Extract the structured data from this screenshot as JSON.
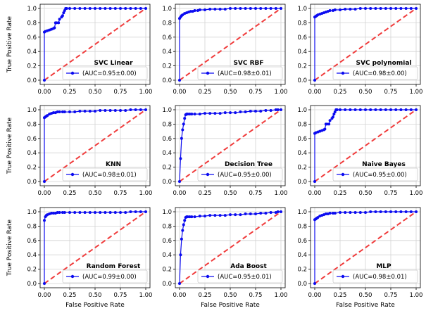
{
  "figure": {
    "xlabel": "False Positive Rate",
    "ylabel": "True Positive Rate"
  },
  "colors": {
    "roc": "#0b0bf0",
    "chance": "#f03c3c",
    "grid": "#d3d3d3",
    "axes": "#000000"
  },
  "chart_data": [
    {
      "type": "line",
      "title": "SVC Linear",
      "xlabel": "",
      "ylabel": "True Positive Rate",
      "xlim": [
        0,
        1
      ],
      "ylim": [
        0,
        1
      ],
      "grid": true,
      "legend_position": "lower-right",
      "xticks": [
        "0.00",
        "0.25",
        "0.50",
        "0.75",
        "1.00"
      ],
      "yticks": [
        "0.0",
        "0.2",
        "0.4",
        "0.6",
        "0.8",
        "1.0"
      ],
      "series": [
        {
          "name": "(AUC=0.95±0.00)",
          "x": [
            0.0,
            0.0,
            0.01,
            0.03,
            0.05,
            0.07,
            0.09,
            0.1,
            0.11,
            0.12,
            0.14,
            0.15,
            0.17,
            0.18,
            0.19,
            0.2,
            0.21,
            0.22,
            0.25,
            0.3,
            0.35,
            0.4,
            0.45,
            0.5,
            0.55,
            0.6,
            0.65,
            0.7,
            0.75,
            0.8,
            0.85,
            0.9,
            0.95,
            1.0
          ],
          "y": [
            0.0,
            0.67,
            0.68,
            0.69,
            0.7,
            0.71,
            0.72,
            0.73,
            0.8,
            0.8,
            0.8,
            0.85,
            0.88,
            0.9,
            0.94,
            0.97,
            1.0,
            1.0,
            1.0,
            1.0,
            1.0,
            1.0,
            1.0,
            1.0,
            1.0,
            1.0,
            1.0,
            1.0,
            1.0,
            1.0,
            1.0,
            1.0,
            1.0,
            1.0
          ]
        },
        {
          "name": "chance",
          "x": [
            0,
            1
          ],
          "y": [
            0,
            1
          ]
        }
      ]
    },
    {
      "type": "line",
      "title": "SVC RBF",
      "xlabel": "",
      "ylabel": "",
      "xlim": [
        0,
        1
      ],
      "ylim": [
        0,
        1
      ],
      "grid": true,
      "legend_position": "lower-right",
      "xticks": [
        "0.00",
        "0.25",
        "0.50",
        "0.75",
        "1.00"
      ],
      "yticks": [
        "0.0",
        "0.2",
        "0.4",
        "0.6",
        "0.8",
        "1.0"
      ],
      "series": [
        {
          "name": "(AUC=0.98±0.01)",
          "x": [
            0.0,
            0.0,
            0.01,
            0.02,
            0.03,
            0.05,
            0.07,
            0.09,
            0.11,
            0.13,
            0.15,
            0.18,
            0.2,
            0.25,
            0.3,
            0.35,
            0.4,
            0.45,
            0.5,
            0.55,
            0.6,
            0.65,
            0.7,
            0.75,
            0.8,
            0.85,
            0.9,
            0.95,
            1.0
          ],
          "y": [
            0.0,
            0.86,
            0.88,
            0.9,
            0.91,
            0.93,
            0.94,
            0.95,
            0.96,
            0.96,
            0.97,
            0.97,
            0.98,
            0.98,
            0.99,
            0.99,
            0.99,
            0.99,
            1.0,
            1.0,
            1.0,
            1.0,
            1.0,
            1.0,
            1.0,
            1.0,
            1.0,
            1.0,
            1.0
          ]
        },
        {
          "name": "chance",
          "x": [
            0,
            1
          ],
          "y": [
            0,
            1
          ]
        }
      ]
    },
    {
      "type": "line",
      "title": "SVC polynomial",
      "xlabel": "",
      "ylabel": "",
      "xlim": [
        0,
        1
      ],
      "ylim": [
        0,
        1
      ],
      "grid": true,
      "legend_position": "lower-right",
      "xticks": [
        "0.00",
        "0.25",
        "0.50",
        "0.75",
        "1.00"
      ],
      "yticks": [
        "0.0",
        "0.2",
        "0.4",
        "0.6",
        "0.8",
        "1.0"
      ],
      "series": [
        {
          "name": "(AUC=0.98±0.00)",
          "x": [
            0.0,
            0.0,
            0.01,
            0.02,
            0.03,
            0.05,
            0.07,
            0.09,
            0.11,
            0.13,
            0.15,
            0.18,
            0.2,
            0.25,
            0.3,
            0.35,
            0.4,
            0.45,
            0.5,
            0.55,
            0.6,
            0.65,
            0.7,
            0.75,
            0.8,
            0.85,
            0.9,
            0.95,
            1.0
          ],
          "y": [
            0.0,
            0.88,
            0.89,
            0.9,
            0.91,
            0.92,
            0.93,
            0.94,
            0.95,
            0.96,
            0.97,
            0.97,
            0.98,
            0.98,
            0.99,
            0.99,
            0.99,
            1.0,
            1.0,
            1.0,
            1.0,
            1.0,
            1.0,
            1.0,
            1.0,
            1.0,
            1.0,
            1.0,
            1.0
          ]
        },
        {
          "name": "chance",
          "x": [
            0,
            1
          ],
          "y": [
            0,
            1
          ]
        }
      ]
    },
    {
      "type": "line",
      "title": "KNN",
      "xlabel": "",
      "ylabel": "True Positive Rate",
      "xlim": [
        0,
        1
      ],
      "ylim": [
        0,
        1
      ],
      "grid": true,
      "legend_position": "lower-right",
      "xticks": [
        "0.00",
        "0.25",
        "0.50",
        "0.75",
        "1.00"
      ],
      "yticks": [
        "0.0",
        "0.2",
        "0.4",
        "0.6",
        "0.8",
        "1.0"
      ],
      "series": [
        {
          "name": "(AUC=0.98±0.01)",
          "x": [
            0.0,
            0.0,
            0.01,
            0.02,
            0.03,
            0.05,
            0.07,
            0.09,
            0.11,
            0.13,
            0.15,
            0.18,
            0.2,
            0.25,
            0.3,
            0.35,
            0.4,
            0.45,
            0.5,
            0.55,
            0.6,
            0.65,
            0.7,
            0.75,
            0.8,
            0.85,
            0.9,
            0.95,
            1.0
          ],
          "y": [
            0.0,
            0.89,
            0.9,
            0.91,
            0.92,
            0.94,
            0.95,
            0.96,
            0.96,
            0.97,
            0.97,
            0.97,
            0.97,
            0.97,
            0.97,
            0.98,
            0.98,
            0.98,
            0.98,
            0.99,
            0.99,
            0.99,
            0.99,
            0.99,
            0.99,
            1.0,
            1.0,
            1.0,
            1.0
          ]
        },
        {
          "name": "chance",
          "x": [
            0,
            1
          ],
          "y": [
            0,
            1
          ]
        }
      ]
    },
    {
      "type": "line",
      "title": "Decision Tree",
      "xlabel": "",
      "ylabel": "",
      "xlim": [
        0,
        1
      ],
      "ylim": [
        0,
        1
      ],
      "grid": true,
      "legend_position": "lower-right",
      "xticks": [
        "0.00",
        "0.25",
        "0.50",
        "0.75",
        "1.00"
      ],
      "yticks": [
        "0.0",
        "0.2",
        "0.4",
        "0.6",
        "0.8",
        "1.0"
      ],
      "series": [
        {
          "name": "(AUC=0.95±0.00)",
          "x": [
            0.0,
            0.01,
            0.02,
            0.03,
            0.04,
            0.05,
            0.06,
            0.07,
            0.08,
            0.1,
            0.12,
            0.15,
            0.2,
            0.25,
            0.3,
            0.35,
            0.4,
            0.45,
            0.5,
            0.55,
            0.6,
            0.65,
            0.7,
            0.75,
            0.8,
            0.85,
            0.9,
            0.95,
            0.97,
            1.0
          ],
          "y": [
            0.0,
            0.32,
            0.6,
            0.72,
            0.8,
            0.88,
            0.93,
            0.94,
            0.94,
            0.94,
            0.94,
            0.94,
            0.94,
            0.95,
            0.95,
            0.95,
            0.95,
            0.96,
            0.96,
            0.96,
            0.97,
            0.97,
            0.98,
            0.98,
            0.98,
            0.99,
            0.99,
            1.0,
            1.0,
            1.0
          ]
        },
        {
          "name": "chance",
          "x": [
            0,
            1
          ],
          "y": [
            0,
            1
          ]
        }
      ]
    },
    {
      "type": "line",
      "title": "Naive Bayes",
      "xlabel": "",
      "ylabel": "",
      "xlim": [
        0,
        1
      ],
      "ylim": [
        0,
        1
      ],
      "grid": true,
      "legend_position": "lower-right",
      "xticks": [
        "0.00",
        "0.25",
        "0.50",
        "0.75",
        "1.00"
      ],
      "yticks": [
        "0.0",
        "0.2",
        "0.4",
        "0.6",
        "0.8",
        "1.0"
      ],
      "series": [
        {
          "name": "(AUC=0.95±0.00)",
          "x": [
            0.0,
            0.0,
            0.01,
            0.03,
            0.05,
            0.07,
            0.09,
            0.1,
            0.11,
            0.12,
            0.14,
            0.15,
            0.17,
            0.18,
            0.19,
            0.2,
            0.21,
            0.22,
            0.25,
            0.3,
            0.35,
            0.4,
            0.45,
            0.5,
            0.55,
            0.6,
            0.65,
            0.7,
            0.75,
            0.8,
            0.85,
            0.9,
            0.95,
            1.0
          ],
          "y": [
            0.0,
            0.67,
            0.68,
            0.69,
            0.7,
            0.71,
            0.72,
            0.73,
            0.8,
            0.8,
            0.8,
            0.85,
            0.88,
            0.9,
            0.94,
            0.97,
            1.0,
            1.0,
            1.0,
            1.0,
            1.0,
            1.0,
            1.0,
            1.0,
            1.0,
            1.0,
            1.0,
            1.0,
            1.0,
            1.0,
            1.0,
            1.0,
            1.0,
            1.0
          ]
        },
        {
          "name": "chance",
          "x": [
            0,
            1
          ],
          "y": [
            0,
            1
          ]
        }
      ]
    },
    {
      "type": "line",
      "title": "Random Forest",
      "xlabel": "False Positive Rate",
      "ylabel": "True Positive Rate",
      "xlim": [
        0,
        1
      ],
      "ylim": [
        0,
        1
      ],
      "grid": true,
      "legend_position": "lower-right",
      "xticks": [
        "0.00",
        "0.25",
        "0.50",
        "0.75",
        "1.00"
      ],
      "yticks": [
        "0.0",
        "0.2",
        "0.4",
        "0.6",
        "0.8",
        "1.0"
      ],
      "series": [
        {
          "name": "(AUC=0.99±0.00)",
          "x": [
            0.0,
            0.0,
            0.01,
            0.02,
            0.03,
            0.05,
            0.07,
            0.09,
            0.11,
            0.13,
            0.15,
            0.18,
            0.2,
            0.25,
            0.3,
            0.35,
            0.4,
            0.45,
            0.5,
            0.55,
            0.6,
            0.65,
            0.7,
            0.75,
            0.8,
            0.85,
            0.9,
            0.95,
            1.0
          ],
          "y": [
            0.0,
            0.88,
            0.93,
            0.95,
            0.96,
            0.97,
            0.98,
            0.98,
            0.98,
            0.99,
            0.99,
            0.99,
            0.99,
            0.99,
            0.99,
            0.99,
            0.99,
            0.99,
            0.99,
            0.99,
            0.99,
            0.99,
            0.99,
            0.99,
            0.99,
            1.0,
            1.0,
            1.0,
            1.0
          ]
        },
        {
          "name": "chance",
          "x": [
            0,
            1
          ],
          "y": [
            0,
            1
          ]
        }
      ]
    },
    {
      "type": "line",
      "title": "Ada Boost",
      "xlabel": "False Positive Rate",
      "ylabel": "",
      "xlim": [
        0,
        1
      ],
      "ylim": [
        0,
        1
      ],
      "grid": true,
      "legend_position": "lower-right",
      "xticks": [
        "0.00",
        "0.25",
        "0.50",
        "0.75",
        "1.00"
      ],
      "yticks": [
        "0.0",
        "0.2",
        "0.4",
        "0.6",
        "0.8",
        "1.0"
      ],
      "series": [
        {
          "name": "(AUC=0.95±0.01)",
          "x": [
            0.0,
            0.01,
            0.02,
            0.03,
            0.04,
            0.05,
            0.06,
            0.07,
            0.08,
            0.1,
            0.12,
            0.15,
            0.2,
            0.25,
            0.3,
            0.35,
            0.4,
            0.45,
            0.5,
            0.55,
            0.6,
            0.65,
            0.7,
            0.75,
            0.8,
            0.85,
            0.9,
            0.95,
            0.97,
            1.0
          ],
          "y": [
            0.0,
            0.4,
            0.62,
            0.74,
            0.82,
            0.88,
            0.92,
            0.93,
            0.93,
            0.93,
            0.93,
            0.93,
            0.94,
            0.94,
            0.95,
            0.95,
            0.95,
            0.95,
            0.96,
            0.96,
            0.96,
            0.97,
            0.97,
            0.97,
            0.98,
            0.98,
            0.99,
            0.99,
            1.0,
            1.0
          ]
        },
        {
          "name": "chance",
          "x": [
            0,
            1
          ],
          "y": [
            0,
            1
          ]
        }
      ]
    },
    {
      "type": "line",
      "title": "MLP",
      "xlabel": "False Positive Rate",
      "ylabel": "",
      "xlim": [
        0,
        1
      ],
      "ylim": [
        0,
        1
      ],
      "grid": true,
      "legend_position": "lower-right",
      "xticks": [
        "0.00",
        "0.25",
        "0.50",
        "0.75",
        "1.00"
      ],
      "yticks": [
        "0.0",
        "0.2",
        "0.4",
        "0.6",
        "0.8",
        "1.0"
      ],
      "series": [
        {
          "name": "(AUC=0.98±0.01)",
          "x": [
            0.0,
            0.0,
            0.01,
            0.02,
            0.03,
            0.05,
            0.07,
            0.09,
            0.11,
            0.13,
            0.15,
            0.18,
            0.2,
            0.25,
            0.3,
            0.35,
            0.4,
            0.45,
            0.5,
            0.55,
            0.6,
            0.65,
            0.7,
            0.75,
            0.8,
            0.85,
            0.9,
            0.95,
            1.0
          ],
          "y": [
            0.0,
            0.89,
            0.9,
            0.91,
            0.92,
            0.94,
            0.95,
            0.96,
            0.97,
            0.97,
            0.98,
            0.98,
            0.98,
            0.99,
            0.99,
            0.99,
            0.99,
            0.99,
            0.99,
            1.0,
            1.0,
            1.0,
            1.0,
            1.0,
            1.0,
            1.0,
            1.0,
            1.0,
            1.0
          ]
        },
        {
          "name": "chance",
          "x": [
            0,
            1
          ],
          "y": [
            0,
            1
          ]
        }
      ]
    }
  ]
}
